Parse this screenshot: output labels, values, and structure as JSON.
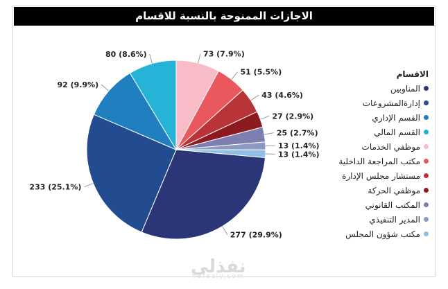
{
  "chart_data": {
    "type": "pie",
    "title": "الاجازات الممنوحة بالنسبة للاقسام",
    "legend_title": "الاقسام",
    "legend_position": "right",
    "slices": [
      {
        "name": "المناوبين",
        "value": 277,
        "percent": "29.9%",
        "label": "277 (29.9%)",
        "color": "#2b3679"
      },
      {
        "name": "إدارةالمشروعات",
        "value": 233,
        "percent": "25.1%",
        "label": "233 (25.1%)",
        "color": "#224c8f"
      },
      {
        "name": "القسم الإداري",
        "value": 92,
        "percent": "9.9%",
        "label": "92 (9.9%)",
        "color": "#1f7fbf"
      },
      {
        "name": "القسم المالي",
        "value": 80,
        "percent": "8.6%",
        "label": "80 (8.6%)",
        "color": "#25b4d8"
      },
      {
        "name": "موظفي الخدمات",
        "value": 73,
        "percent": "7.9%",
        "label": "73 (7.9%)",
        "color": "#f7bcc6"
      },
      {
        "name": "مكتب المراجعة الداخلية",
        "value": 51,
        "percent": "5.5%",
        "label": "51 (5.5%)",
        "color": "#e9585c"
      },
      {
        "name": "مستشار مجلس الإدارة",
        "value": 43,
        "percent": "4.6%",
        "label": "43 (4.6%)",
        "color": "#b83436"
      },
      {
        "name": "موظفي الحركة",
        "value": 27,
        "percent": "2.9%",
        "label": "27 (2.9%)",
        "color": "#8c1a1f"
      },
      {
        "name": "المكتب القانوني",
        "value": 25,
        "percent": "2.7%",
        "label": "25 (2.7%)",
        "color": "#7e7eb0"
      },
      {
        "name": "المدير التنفيذي",
        "value": 13,
        "percent": "1.4%",
        "label": "13 (1.4%)",
        "color": "#8c9ac2"
      },
      {
        "name": "مكتب شؤون المجلس",
        "value": 13,
        "percent": "1.4%",
        "label": "13 (1.4%)",
        "color": "#8ec0e6"
      }
    ]
  },
  "watermark": {
    "brand": "نفذلي",
    "domain": "nafezly.com"
  }
}
